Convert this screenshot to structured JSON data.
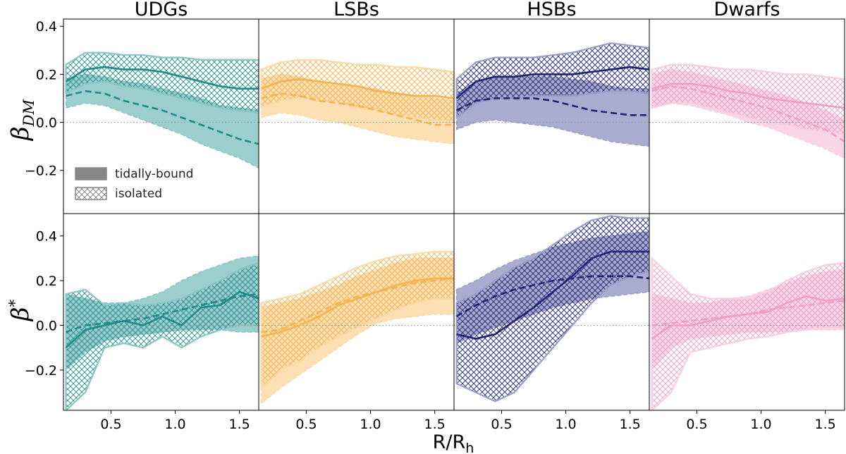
{
  "chart_data": {
    "type": "line",
    "xlabel_main": "R/R",
    "xlabel_sub": "h",
    "x_ticks": [
      "0.5",
      "1.0",
      "1.5"
    ],
    "x_tick_values": [
      0.5,
      1.0,
      1.5
    ],
    "xlim": [
      0.13,
      1.65
    ],
    "legend": {
      "placement": "lower-left of first panel",
      "entries": [
        {
          "label": "tidally-bound",
          "style": "solid band, dashed median"
        },
        {
          "label": "isolated",
          "style": "hatched band, solid median"
        }
      ]
    },
    "rows": [
      {
        "key": "dm",
        "ylabel_main": "β",
        "ylabel_sub": "DM",
        "ylim": [
          -0.38,
          0.43
        ],
        "y_ticks": [
          "0.4",
          "0.2",
          "0.0",
          "−0.2"
        ],
        "y_tick_values": [
          0.4,
          0.2,
          0.0,
          -0.2
        ],
        "reference_line": 0.0
      },
      {
        "key": "star",
        "ylabel_main": "β",
        "ylabel_sub": "*",
        "ylim": [
          -0.38,
          0.5
        ],
        "y_ticks": [
          "0.4",
          "0.2",
          "0.0",
          "−0.2"
        ],
        "y_tick_values": [
          0.4,
          0.2,
          0.0,
          -0.2
        ],
        "reference_line": 0.0
      }
    ],
    "panels": [
      {
        "title": "UDGs",
        "color": "#1f8a87",
        "fill_color": "#89c6c3",
        "dm": {
          "x": [
            0.15,
            0.3,
            0.45,
            0.6,
            0.75,
            0.9,
            1.05,
            1.2,
            1.35,
            1.5,
            1.65
          ],
          "isolated_median": [
            0.17,
            0.22,
            0.23,
            0.22,
            0.22,
            0.21,
            0.19,
            0.17,
            0.15,
            0.14,
            0.14
          ],
          "isolated_lower": [
            0.12,
            0.16,
            0.17,
            0.15,
            0.14,
            0.12,
            0.1,
            0.08,
            0.06,
            0.05,
            0.04
          ],
          "isolated_upper": [
            0.24,
            0.29,
            0.29,
            0.28,
            0.28,
            0.27,
            0.27,
            0.26,
            0.26,
            0.26,
            0.26
          ],
          "tidal_median": [
            0.11,
            0.13,
            0.12,
            0.09,
            0.07,
            0.05,
            0.02,
            -0.01,
            -0.04,
            -0.07,
            -0.09
          ],
          "tidal_lower": [
            0.06,
            0.08,
            0.07,
            0.04,
            0.01,
            -0.02,
            -0.05,
            -0.09,
            -0.12,
            -0.15,
            -0.19
          ],
          "tidal_upper": [
            0.18,
            0.2,
            0.19,
            0.17,
            0.16,
            0.14,
            0.12,
            0.1,
            0.07,
            0.06,
            0.05
          ]
        },
        "star": {
          "x": [
            0.15,
            0.3,
            0.45,
            0.6,
            0.75,
            0.9,
            1.05,
            1.2,
            1.35,
            1.5,
            1.65
          ],
          "isolated_median": [
            -0.1,
            -0.02,
            0.0,
            0.02,
            0.0,
            0.04,
            0.0,
            0.08,
            0.09,
            0.15,
            0.12
          ],
          "isolated_lower": [
            -0.38,
            -0.3,
            -0.1,
            -0.08,
            -0.1,
            -0.05,
            -0.1,
            -0.05,
            -0.02,
            0.0,
            0.0
          ],
          "isolated_upper": [
            0.14,
            0.16,
            0.09,
            0.1,
            0.09,
            0.1,
            0.12,
            0.16,
            0.2,
            0.25,
            0.28
          ],
          "tidal_median": [
            -0.03,
            0.0,
            0.01,
            0.02,
            0.03,
            0.05,
            0.07,
            0.09,
            0.11,
            0.13,
            0.14
          ],
          "tidal_lower": [
            -0.2,
            -0.12,
            -0.07,
            -0.05,
            -0.04,
            -0.03,
            -0.02,
            -0.02,
            -0.02,
            -0.03,
            -0.03
          ],
          "tidal_upper": [
            0.14,
            0.12,
            0.1,
            0.1,
            0.12,
            0.15,
            0.2,
            0.24,
            0.27,
            0.3,
            0.31
          ]
        }
      },
      {
        "title": "LSBs",
        "color": "#f5b24e",
        "fill_color": "#fcd9a6",
        "dm": {
          "x": [
            0.15,
            0.3,
            0.45,
            0.6,
            0.75,
            0.9,
            1.05,
            1.2,
            1.35,
            1.5,
            1.65
          ],
          "isolated_median": [
            0.14,
            0.17,
            0.18,
            0.17,
            0.16,
            0.15,
            0.13,
            0.12,
            0.11,
            0.11,
            0.1
          ],
          "isolated_lower": [
            0.06,
            0.09,
            0.1,
            0.09,
            0.08,
            0.06,
            0.05,
            0.03,
            0.02,
            0.01,
            0.0
          ],
          "isolated_upper": [
            0.22,
            0.25,
            0.26,
            0.26,
            0.25,
            0.24,
            0.24,
            0.23,
            0.23,
            0.22,
            0.21
          ],
          "tidal_median": [
            0.1,
            0.12,
            0.11,
            0.09,
            0.08,
            0.07,
            0.05,
            0.03,
            0.01,
            -0.01,
            -0.01
          ],
          "tidal_lower": [
            0.02,
            0.04,
            0.03,
            0.01,
            0.0,
            -0.02,
            -0.04,
            -0.06,
            -0.07,
            -0.08,
            -0.09
          ],
          "tidal_upper": [
            0.18,
            0.2,
            0.19,
            0.17,
            0.16,
            0.15,
            0.14,
            0.12,
            0.11,
            0.1,
            0.09
          ]
        },
        "star": {
          "x": [
            0.15,
            0.3,
            0.45,
            0.6,
            0.75,
            0.9,
            1.05,
            1.2,
            1.35,
            1.5,
            1.65
          ],
          "isolated_median": [
            -0.05,
            -0.03,
            0.0,
            0.04,
            0.09,
            0.12,
            0.15,
            0.18,
            0.2,
            0.21,
            0.21
          ],
          "isolated_lower": [
            -0.28,
            -0.2,
            -0.16,
            -0.1,
            -0.05,
            -0.01,
            0.03,
            0.07,
            0.1,
            0.12,
            0.12
          ],
          "isolated_upper": [
            0.1,
            0.12,
            0.14,
            0.18,
            0.22,
            0.26,
            0.29,
            0.31,
            0.32,
            0.33,
            0.33
          ],
          "tidal_median": [
            -0.03,
            -0.02,
            0.02,
            0.06,
            0.1,
            0.13,
            0.15,
            0.17,
            0.19,
            0.2,
            0.21
          ],
          "tidal_lower": [
            -0.35,
            -0.28,
            -0.22,
            -0.16,
            -0.1,
            -0.04,
            0.01,
            0.03,
            0.04,
            0.05,
            0.05
          ],
          "tidal_upper": [
            0.08,
            0.1,
            0.12,
            0.15,
            0.18,
            0.22,
            0.25,
            0.28,
            0.3,
            0.3,
            0.3
          ]
        }
      },
      {
        "title": "HSBs",
        "color": "#1c2370",
        "fill_color": "#9a9dc7",
        "dm": {
          "x": [
            0.15,
            0.3,
            0.45,
            0.6,
            0.75,
            0.9,
            1.05,
            1.2,
            1.35,
            1.5,
            1.65
          ],
          "isolated_median": [
            0.1,
            0.17,
            0.19,
            0.19,
            0.2,
            0.2,
            0.2,
            0.21,
            0.22,
            0.23,
            0.22
          ],
          "isolated_lower": [
            0.02,
            0.08,
            0.1,
            0.1,
            0.11,
            0.11,
            0.11,
            0.12,
            0.13,
            0.13,
            0.12
          ],
          "isolated_upper": [
            0.18,
            0.25,
            0.27,
            0.27,
            0.27,
            0.28,
            0.29,
            0.31,
            0.33,
            0.32,
            0.31
          ],
          "tidal_median": [
            0.05,
            0.09,
            0.1,
            0.1,
            0.1,
            0.09,
            0.07,
            0.05,
            0.04,
            0.03,
            0.03
          ],
          "tidal_lower": [
            -0.03,
            0.0,
            0.01,
            0.0,
            -0.01,
            -0.02,
            -0.04,
            -0.06,
            -0.08,
            -0.09,
            -0.1
          ],
          "tidal_upper": [
            0.12,
            0.17,
            0.19,
            0.19,
            0.19,
            0.19,
            0.18,
            0.17,
            0.15,
            0.14,
            0.14
          ]
        },
        "star": {
          "x": [
            0.15,
            0.3,
            0.45,
            0.6,
            0.75,
            0.9,
            1.05,
            1.2,
            1.35,
            1.5,
            1.65
          ],
          "isolated_median": [
            -0.04,
            -0.06,
            -0.04,
            0.02,
            0.08,
            0.15,
            0.22,
            0.3,
            0.33,
            0.33,
            0.33
          ],
          "isolated_lower": [
            -0.26,
            -0.3,
            -0.34,
            -0.3,
            -0.2,
            -0.1,
            0.0,
            0.1,
            0.18,
            0.22,
            0.24
          ],
          "isolated_upper": [
            0.1,
            0.14,
            0.2,
            0.26,
            0.3,
            0.36,
            0.42,
            0.47,
            0.49,
            0.48,
            0.48
          ],
          "tidal_median": [
            0.04,
            0.09,
            0.13,
            0.16,
            0.18,
            0.2,
            0.21,
            0.22,
            0.22,
            0.22,
            0.21
          ],
          "tidal_lower": [
            -0.08,
            -0.04,
            -0.01,
            0.02,
            0.05,
            0.08,
            0.1,
            0.12,
            0.13,
            0.14,
            0.15
          ],
          "tidal_upper": [
            0.16,
            0.2,
            0.25,
            0.29,
            0.32,
            0.35,
            0.37,
            0.39,
            0.4,
            0.41,
            0.42
          ]
        }
      },
      {
        "title": "Dwarfs",
        "color": "#ef9fc4",
        "fill_color": "#f8cfe1",
        "dm": {
          "x": [
            0.15,
            0.3,
            0.45,
            0.6,
            0.75,
            0.9,
            1.05,
            1.2,
            1.35,
            1.5,
            1.65
          ],
          "isolated_median": [
            0.14,
            0.16,
            0.16,
            0.15,
            0.13,
            0.12,
            0.1,
            0.09,
            0.08,
            0.07,
            0.06
          ],
          "isolated_lower": [
            0.06,
            0.08,
            0.08,
            0.06,
            0.04,
            0.02,
            0.0,
            -0.01,
            -0.03,
            -0.04,
            -0.05
          ],
          "isolated_upper": [
            0.22,
            0.24,
            0.24,
            0.23,
            0.22,
            0.22,
            0.21,
            0.2,
            0.2,
            0.19,
            0.18
          ],
          "tidal_median": [
            0.13,
            0.15,
            0.14,
            0.12,
            0.1,
            0.08,
            0.06,
            0.03,
            0.0,
            -0.03,
            -0.08
          ],
          "tidal_lower": [
            0.07,
            0.08,
            0.07,
            0.05,
            0.03,
            0.0,
            -0.02,
            -0.05,
            -0.08,
            -0.11,
            -0.15
          ],
          "tidal_upper": [
            0.2,
            0.22,
            0.21,
            0.19,
            0.17,
            0.15,
            0.13,
            0.11,
            0.08,
            0.05,
            0.01
          ]
        },
        "star": {
          "x": [
            0.15,
            0.3,
            0.45,
            0.6,
            0.75,
            0.9,
            1.05,
            1.2,
            1.35,
            1.5,
            1.65
          ],
          "isolated_median": [
            -0.06,
            0.0,
            0.0,
            0.02,
            0.04,
            0.05,
            0.06,
            0.1,
            0.13,
            0.11,
            0.12
          ],
          "isolated_lower": [
            -0.38,
            -0.3,
            -0.12,
            -0.1,
            -0.08,
            -0.06,
            -0.05,
            -0.03,
            -0.02,
            -0.01,
            -0.01
          ],
          "isolated_upper": [
            0.3,
            0.22,
            0.14,
            0.12,
            0.12,
            0.12,
            0.15,
            0.2,
            0.24,
            0.27,
            0.28
          ],
          "tidal_median": [
            0.0,
            0.01,
            0.02,
            0.03,
            0.04,
            0.05,
            0.07,
            0.08,
            0.09,
            0.1,
            0.11
          ],
          "tidal_lower": [
            -0.2,
            -0.1,
            -0.06,
            -0.05,
            -0.04,
            -0.03,
            -0.03,
            -0.03,
            -0.02,
            -0.02,
            -0.02
          ],
          "tidal_upper": [
            0.14,
            0.12,
            0.1,
            0.1,
            0.12,
            0.13,
            0.16,
            0.19,
            0.22,
            0.24,
            0.25
          ]
        }
      }
    ]
  }
}
